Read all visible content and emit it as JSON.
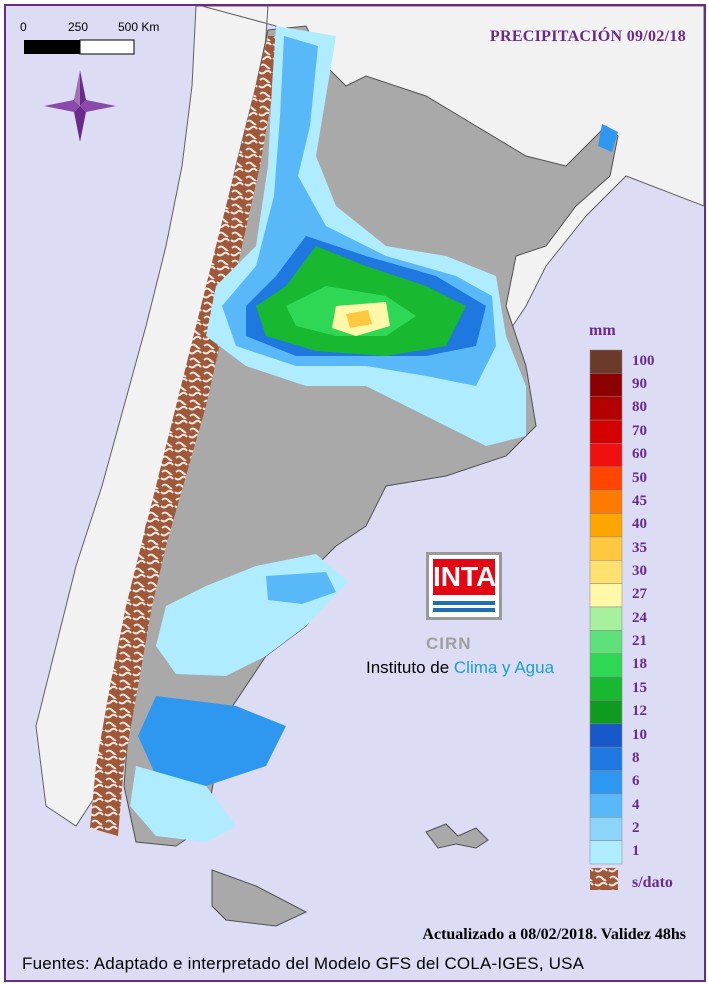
{
  "title": "PRECIPITACIÓN 09/02/18",
  "scale": {
    "labels": [
      "0",
      "250",
      "500 Km"
    ]
  },
  "compass_icon": "compass-rose-icon",
  "legend": {
    "unit": "mm",
    "classes": [
      {
        "label": "100",
        "color": "#6b3a2a"
      },
      {
        "label": "90",
        "color": "#8b0000"
      },
      {
        "label": "80",
        "color": "#b30000"
      },
      {
        "label": "70",
        "color": "#d40000"
      },
      {
        "label": "60",
        "color": "#f01010"
      },
      {
        "label": "50",
        "color": "#ff4500"
      },
      {
        "label": "45",
        "color": "#ff7a00"
      },
      {
        "label": "40",
        "color": "#ffa500"
      },
      {
        "label": "35",
        "color": "#ffc840"
      },
      {
        "label": "30",
        "color": "#ffe070"
      },
      {
        "label": "27",
        "color": "#fff8a8"
      },
      {
        "label": "24",
        "color": "#a6f0a0"
      },
      {
        "label": "21",
        "color": "#5ee07a"
      },
      {
        "label": "18",
        "color": "#2ed855"
      },
      {
        "label": "15",
        "color": "#18b830"
      },
      {
        "label": "12",
        "color": "#0f9a20"
      },
      {
        "label": "10",
        "color": "#1858c8"
      },
      {
        "label": "8",
        "color": "#1e78e0"
      },
      {
        "label": "6",
        "color": "#2e98f0"
      },
      {
        "label": "4",
        "color": "#58b8f8"
      },
      {
        "label": "2",
        "color": "#8cd4fa"
      },
      {
        "label": "1",
        "color": "#b0ecff"
      }
    ],
    "nodata_label": "s/dato",
    "nodata_color": "#a0583a"
  },
  "logo": {
    "brand": "INTA",
    "unit": "CIRN",
    "institute_prefix": "Instituto de ",
    "institute_highlight": "Clima y Agua"
  },
  "footer": {
    "updated": "Actualizado a 08/02/2018. Validez 48hs",
    "sources": "Fuentes: Adaptado e interpretado del Modelo GFS del COLA-IGES, USA"
  }
}
